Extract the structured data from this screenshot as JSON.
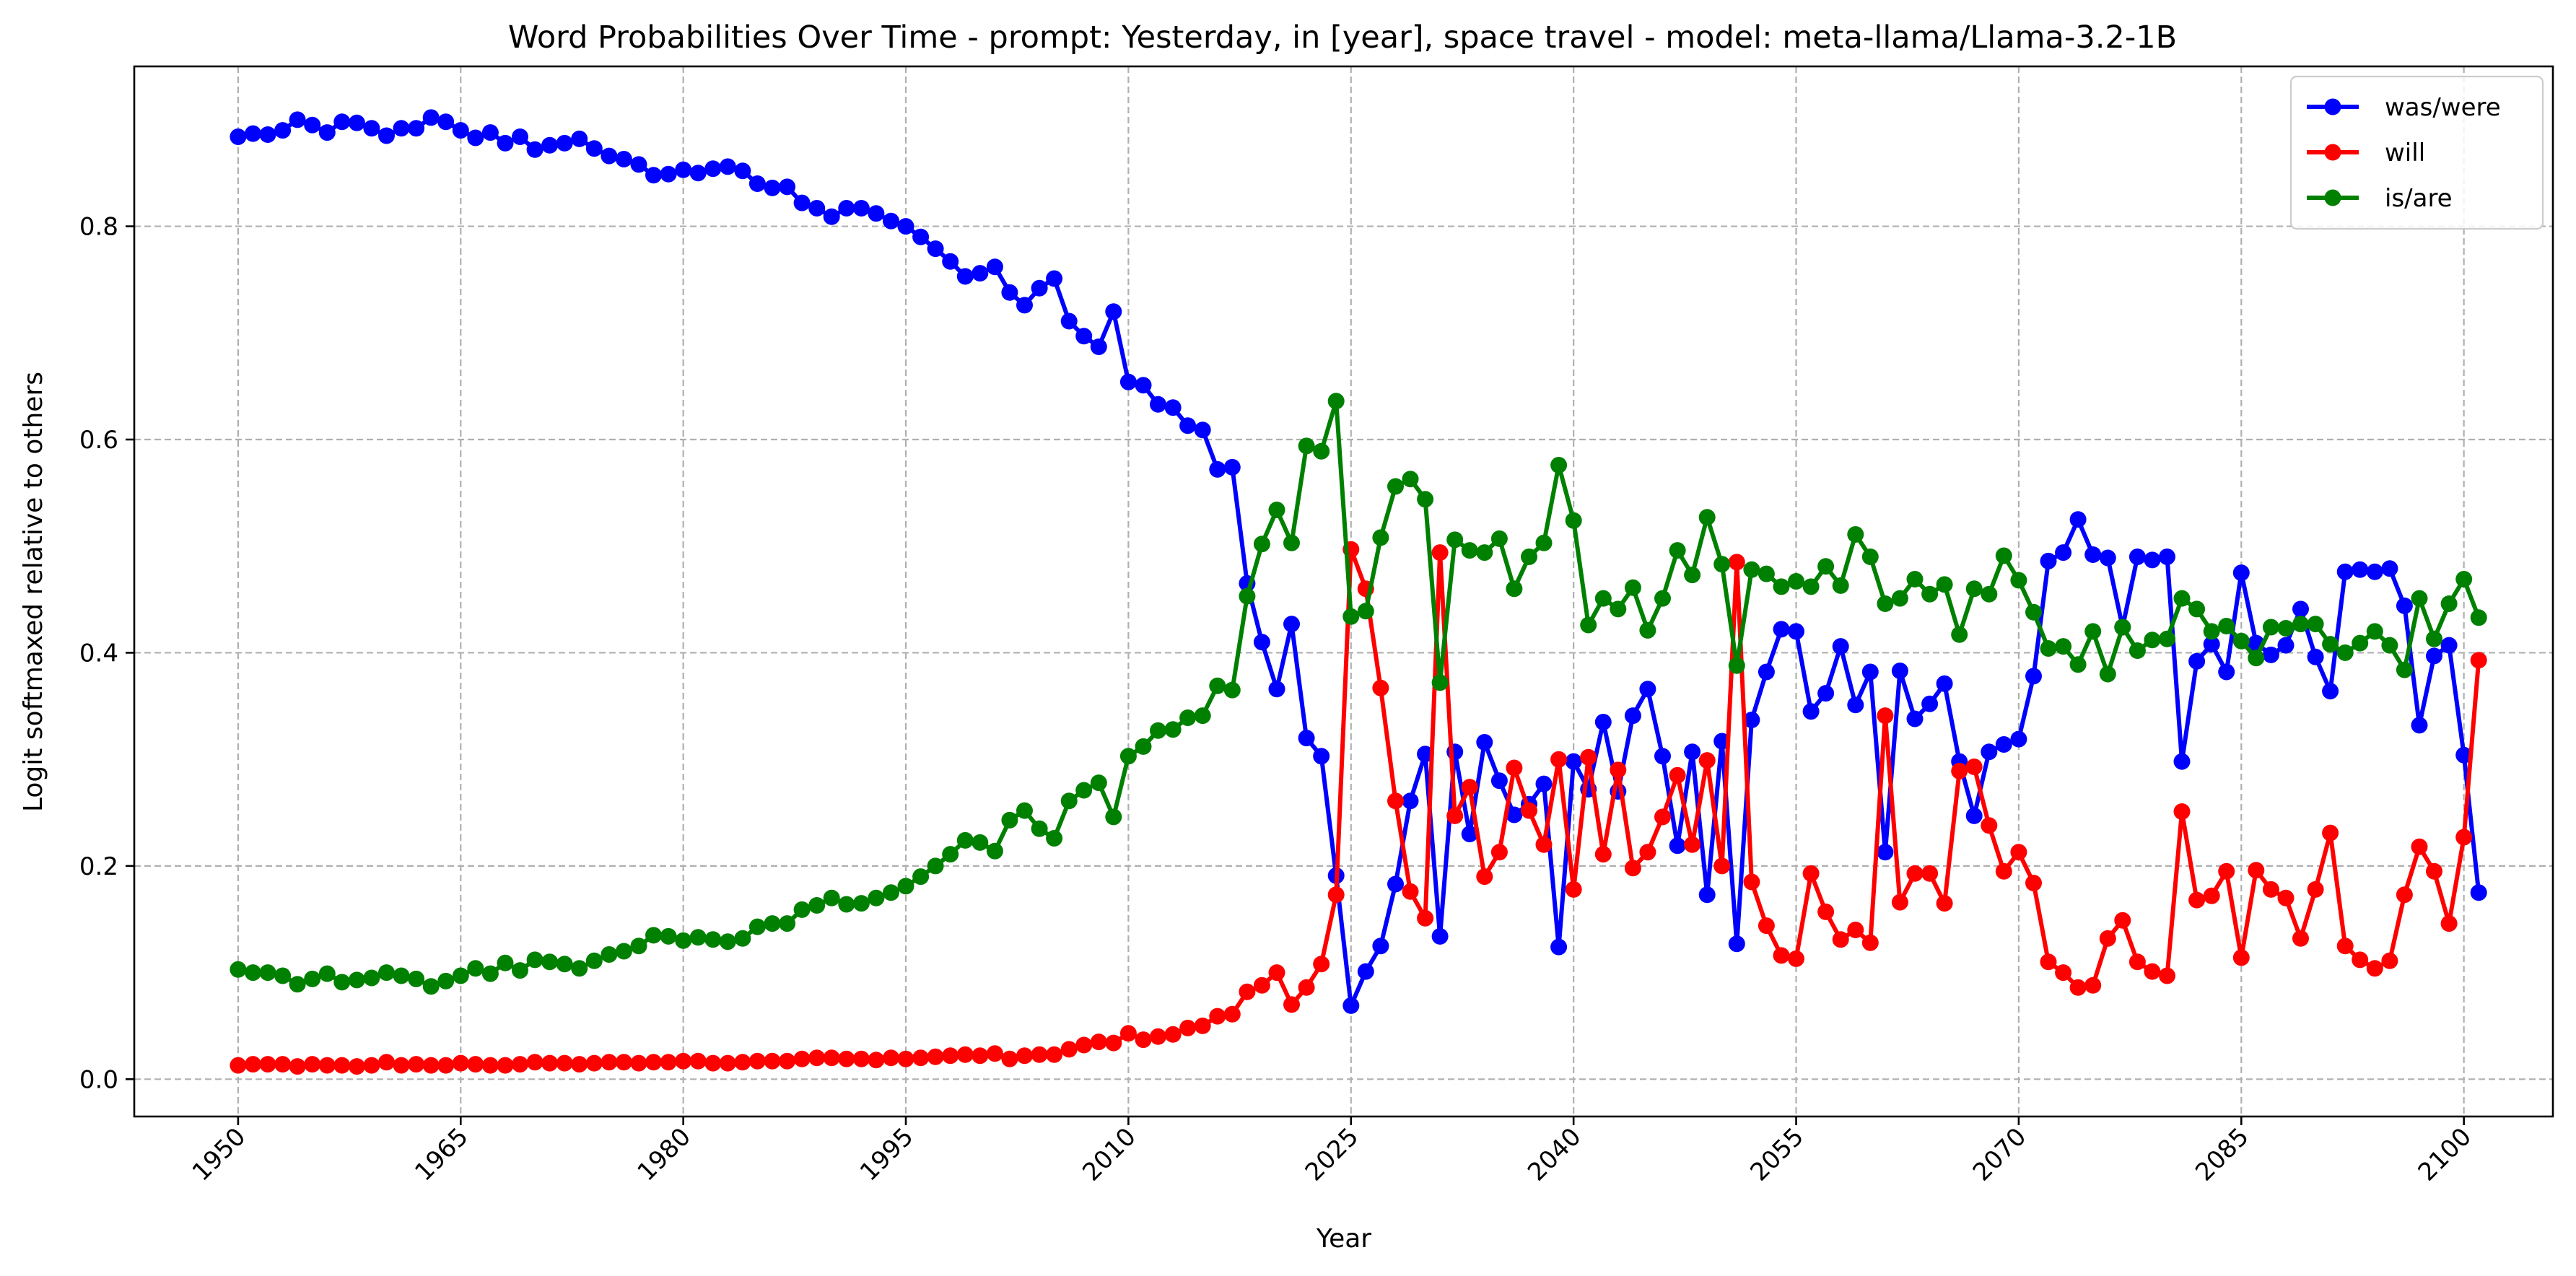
{
  "chart_data": {
    "type": "line",
    "title": "Word Probabilities Over Time - prompt: Yesterday, in [year], space travel - model: meta-llama/Llama-3.2-1B",
    "xlabel": "Year",
    "ylabel": "Logit softmaxed relative to others",
    "xlim": [
      1943,
      2106
    ],
    "ylim": [
      -0.035,
      0.95
    ],
    "xticks": [
      1950,
      1965,
      1980,
      1995,
      2010,
      2025,
      2040,
      2055,
      2070,
      2085,
      2100
    ],
    "xtick_labels": [
      "1950",
      "1965",
      "1980",
      "1995",
      "2010",
      "2025",
      "2040",
      "2055",
      "2070",
      "2085",
      "2100"
    ],
    "yticks": [
      0.0,
      0.2,
      0.4,
      0.6,
      0.8
    ],
    "ytick_labels": [
      "0.0",
      "0.2",
      "0.4",
      "0.6",
      "0.8"
    ],
    "grid": true,
    "legend_position": "upper-right",
    "x_start": 1950,
    "x_step": 1,
    "series": [
      {
        "name": "was/were",
        "color": "#0000ff",
        "values": [
          0.884,
          0.887,
          0.886,
          0.89,
          0.9,
          0.895,
          0.888,
          0.898,
          0.897,
          0.892,
          0.885,
          0.892,
          0.892,
          0.902,
          0.898,
          0.89,
          0.883,
          0.888,
          0.878,
          0.884,
          0.872,
          0.876,
          0.878,
          0.882,
          0.873,
          0.866,
          0.863,
          0.858,
          0.848,
          0.849,
          0.853,
          0.85,
          0.854,
          0.856,
          0.852,
          0.84,
          0.836,
          0.837,
          0.822,
          0.817,
          0.809,
          0.817,
          0.817,
          0.812,
          0.805,
          0.8,
          0.79,
          0.779,
          0.767,
          0.753,
          0.756,
          0.762,
          0.738,
          0.726,
          0.742,
          0.751,
          0.711,
          0.697,
          0.687,
          0.72,
          0.654,
          0.651,
          0.633,
          0.63,
          0.613,
          0.609,
          0.572,
          0.574,
          0.465,
          0.41,
          0.366,
          0.427,
          0.32,
          0.303,
          0.191,
          0.069,
          0.101,
          0.125,
          0.183,
          0.261,
          0.305,
          0.134,
          0.307,
          0.23,
          0.316,
          0.28,
          0.248,
          0.258,
          0.277,
          0.124,
          0.298,
          0.272,
          0.335,
          0.27,
          0.341,
          0.366,
          0.303,
          0.219,
          0.307,
          0.173,
          0.317,
          0.127,
          0.337,
          0.382,
          0.422,
          0.42,
          0.345,
          0.362,
          0.406,
          0.351,
          0.382,
          0.213,
          0.383,
          0.338,
          0.352,
          0.371,
          0.298,
          0.247,
          0.307,
          0.314,
          0.319,
          0.378,
          0.486,
          0.494,
          0.525,
          0.492,
          0.489,
          0.424,
          0.49,
          0.487,
          0.49,
          0.298,
          0.392,
          0.408,
          0.382,
          0.475,
          0.409,
          0.398,
          0.407,
          0.441,
          0.396,
          0.364,
          0.476,
          0.478,
          0.476,
          0.479,
          0.444,
          0.332,
          0.397,
          0.407,
          0.304,
          0.175
        ]
      },
      {
        "name": "will",
        "color": "#ff0000",
        "values": [
          0.013,
          0.014,
          0.014,
          0.014,
          0.012,
          0.014,
          0.013,
          0.013,
          0.012,
          0.013,
          0.016,
          0.013,
          0.014,
          0.013,
          0.013,
          0.015,
          0.014,
          0.013,
          0.013,
          0.014,
          0.016,
          0.015,
          0.015,
          0.014,
          0.015,
          0.016,
          0.016,
          0.015,
          0.016,
          0.016,
          0.017,
          0.017,
          0.015,
          0.015,
          0.016,
          0.017,
          0.017,
          0.017,
          0.019,
          0.02,
          0.02,
          0.019,
          0.019,
          0.018,
          0.02,
          0.019,
          0.02,
          0.021,
          0.022,
          0.023,
          0.022,
          0.024,
          0.019,
          0.022,
          0.023,
          0.023,
          0.028,
          0.032,
          0.035,
          0.034,
          0.043,
          0.037,
          0.04,
          0.042,
          0.048,
          0.05,
          0.059,
          0.061,
          0.082,
          0.088,
          0.1,
          0.07,
          0.086,
          0.108,
          0.173,
          0.497,
          0.46,
          0.367,
          0.261,
          0.176,
          0.151,
          0.494,
          0.247,
          0.274,
          0.19,
          0.213,
          0.292,
          0.252,
          0.22,
          0.3,
          0.178,
          0.302,
          0.211,
          0.29,
          0.198,
          0.213,
          0.246,
          0.285,
          0.22,
          0.299,
          0.2,
          0.485,
          0.185,
          0.144,
          0.116,
          0.113,
          0.193,
          0.157,
          0.131,
          0.14,
          0.128,
          0.341,
          0.166,
          0.193,
          0.193,
          0.165,
          0.289,
          0.293,
          0.238,
          0.195,
          0.213,
          0.184,
          0.11,
          0.1,
          0.086,
          0.088,
          0.132,
          0.149,
          0.11,
          0.101,
          0.097,
          0.251,
          0.168,
          0.172,
          0.195,
          0.114,
          0.196,
          0.178,
          0.17,
          0.132,
          0.178,
          0.231,
          0.125,
          0.112,
          0.104,
          0.111,
          0.173,
          0.218,
          0.195,
          0.146,
          0.227,
          0.393
        ]
      },
      {
        "name": "is/are",
        "color": "#008000",
        "values": [
          0.103,
          0.1,
          0.1,
          0.097,
          0.089,
          0.094,
          0.099,
          0.091,
          0.093,
          0.095,
          0.1,
          0.097,
          0.094,
          0.087,
          0.092,
          0.097,
          0.104,
          0.099,
          0.109,
          0.102,
          0.112,
          0.11,
          0.108,
          0.104,
          0.111,
          0.117,
          0.12,
          0.125,
          0.135,
          0.134,
          0.13,
          0.133,
          0.131,
          0.129,
          0.132,
          0.143,
          0.146,
          0.146,
          0.159,
          0.163,
          0.17,
          0.164,
          0.165,
          0.17,
          0.175,
          0.181,
          0.19,
          0.2,
          0.211,
          0.224,
          0.222,
          0.214,
          0.243,
          0.252,
          0.235,
          0.226,
          0.261,
          0.271,
          0.278,
          0.246,
          0.303,
          0.312,
          0.327,
          0.328,
          0.339,
          0.341,
          0.369,
          0.365,
          0.453,
          0.502,
          0.534,
          0.503,
          0.594,
          0.589,
          0.636,
          0.434,
          0.439,
          0.508,
          0.556,
          0.563,
          0.544,
          0.372,
          0.506,
          0.496,
          0.494,
          0.507,
          0.46,
          0.49,
          0.503,
          0.576,
          0.524,
          0.426,
          0.451,
          0.441,
          0.461,
          0.421,
          0.451,
          0.496,
          0.473,
          0.527,
          0.483,
          0.388,
          0.478,
          0.474,
          0.462,
          0.467,
          0.462,
          0.481,
          0.463,
          0.511,
          0.49,
          0.446,
          0.451,
          0.469,
          0.455,
          0.464,
          0.417,
          0.46,
          0.455,
          0.491,
          0.468,
          0.438,
          0.404,
          0.406,
          0.389,
          0.42,
          0.38,
          0.424,
          0.402,
          0.412,
          0.413,
          0.451,
          0.441,
          0.42,
          0.425,
          0.411,
          0.395,
          0.424,
          0.423,
          0.427,
          0.427,
          0.408,
          0.4,
          0.409,
          0.42,
          0.407,
          0.384,
          0.451,
          0.413,
          0.446,
          0.469,
          0.433
        ]
      }
    ]
  }
}
